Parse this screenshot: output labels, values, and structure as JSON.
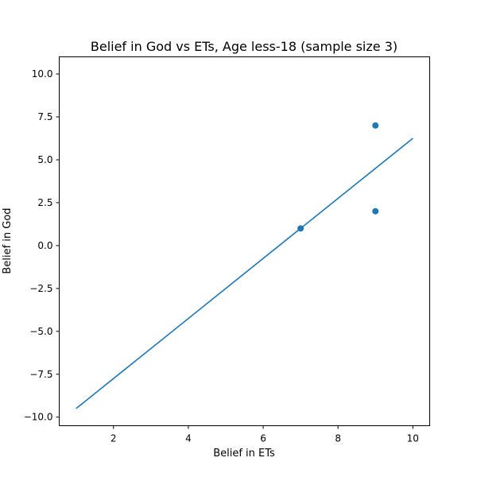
{
  "chart_data": {
    "type": "scatter",
    "title": "Belief in God vs ETs, Age less-18 (sample size 3)",
    "xlabel": "Belief in ETs",
    "ylabel": "Belief in God",
    "xlim": [
      0.55,
      10.45
    ],
    "ylim": [
      -10.5,
      11.0
    ],
    "xticks": [
      2,
      4,
      6,
      8,
      10
    ],
    "xtick_labels": [
      "2",
      "4",
      "6",
      "8",
      "10"
    ],
    "yticks": [
      -10.0,
      -7.5,
      -5.0,
      -2.5,
      0.0,
      2.5,
      5.0,
      7.5,
      10.0
    ],
    "ytick_labels": [
      "−10.0",
      "−7.5",
      "−5.0",
      "−2.5",
      "0.0",
      "2.5",
      "5.0",
      "7.5",
      "10.0"
    ],
    "grid": false,
    "color": "#1f77b4",
    "points": [
      {
        "x": 7,
        "y": 1
      },
      {
        "x": 9,
        "y": 7
      },
      {
        "x": 9,
        "y": 2
      }
    ],
    "fit_line": {
      "x": [
        1,
        10
      ],
      "y": [
        -9.5,
        6.25
      ]
    }
  }
}
